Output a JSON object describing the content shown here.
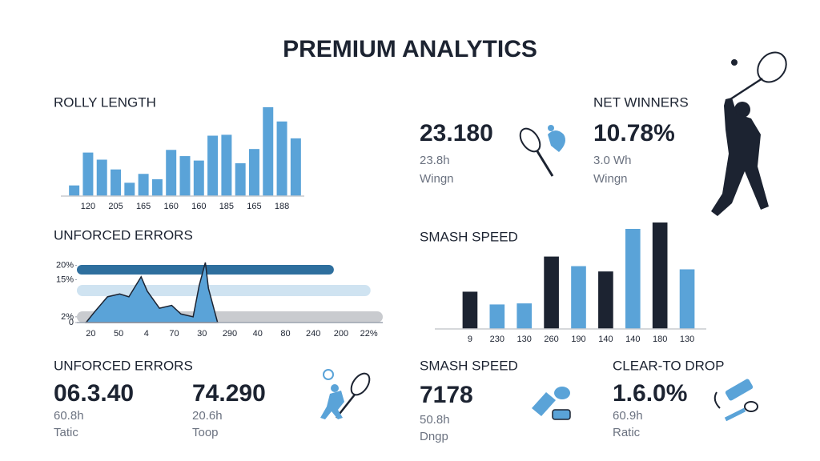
{
  "header": {
    "title": "PREMIUM ANALYTICS"
  },
  "chart_data": [
    {
      "type": "bar",
      "title": "ROLLY LENGTH",
      "categories": [
        null,
        "120",
        null,
        "205",
        null,
        "165",
        null,
        "160",
        null,
        "160",
        null,
        "185",
        null,
        "165",
        null,
        "188",
        null
      ],
      "values": [
        12,
        49,
        41,
        30,
        15,
        25,
        19,
        52,
        45,
        40,
        68,
        69,
        37,
        53,
        100,
        84,
        65
      ],
      "color": "#5aa3d8",
      "ylim": [
        0,
        100
      ]
    },
    {
      "type": "combo",
      "title": "UNFORCED ERRORS",
      "categories": [
        "20",
        "50",
        "4",
        "70",
        "30",
        "290",
        "40",
        "80",
        "240",
        "200",
        "22%"
      ],
      "xlim": [
        0,
        100
      ],
      "ylim": [
        0,
        21
      ],
      "yticks": [
        {
          "value": 20,
          "label": "20%"
        },
        {
          "value": 15,
          "label": "15%"
        },
        {
          "value": 2,
          "label": "2%"
        },
        0
      ],
      "bars": [
        {
          "color": "#2e6f9e",
          "value": 84
        },
        {
          "color": "#cfe3f1",
          "value": 96
        },
        {
          "color": "#c9cbcf",
          "value": 100
        }
      ],
      "area": {
        "color": "#5aa3d8",
        "x": [
          3,
          6,
          10,
          14,
          17,
          21,
          23,
          27,
          31,
          34,
          38,
          40,
          42,
          43,
          46
        ],
        "values": [
          0,
          4,
          9,
          10,
          9,
          16,
          11,
          5,
          6,
          3,
          2,
          13,
          21,
          12,
          0
        ]
      }
    },
    {
      "type": "bar",
      "title": "SMASH SPEED",
      "categories": [
        "9",
        "230",
        "130",
        "260",
        "190",
        "140",
        "140",
        "180",
        "130"
      ],
      "values": [
        35,
        23,
        24,
        68,
        59,
        54,
        94,
        100,
        56
      ],
      "colors": [
        "#1c2331",
        "#5aa3d8",
        "#5aa3d8",
        "#1c2331",
        "#5aa3d8",
        "#1c2331",
        "#5aa3d8",
        "#1c2331",
        "#5aa3d8"
      ],
      "ylim": [
        0,
        100
      ]
    }
  ],
  "kpis": [
    {
      "value": "23.180",
      "sub": "23.8h",
      "label": "Wingn"
    },
    {
      "heading": "NET WINNERS",
      "value": "10.78%",
      "sub": "3.0 Wh",
      "label": "Wingn"
    },
    {
      "heading": "UNFORCED ERRORS",
      "value": "06.3.40",
      "sub": "60.8h",
      "label": "Tatic"
    },
    {
      "value": "74.290",
      "sub": "20.6h",
      "label": "Toop"
    },
    {
      "heading": "SMASH SPEED",
      "value": "7178",
      "sub": "50.8h",
      "label": "Dngp"
    },
    {
      "heading": "CLEAR-TO DROP",
      "value": "1.6.0%",
      "sub": "60.9h",
      "label": "Ratic"
    }
  ]
}
